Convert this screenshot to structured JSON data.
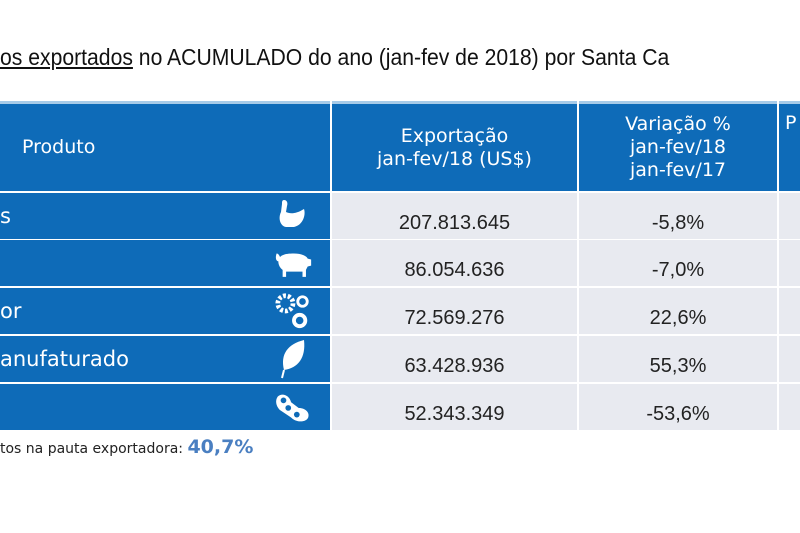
{
  "title": {
    "underlined": "os exportados",
    "rest": " no ACUMULADO do ano (jan-fev de 2018) por Santa Ca"
  },
  "table": {
    "headers": [
      "Produto",
      "Exportação\njan-fev/18 (US$)",
      "Variação %\njan-fev/18\njan-fev/17",
      "P"
    ],
    "rows": [
      {
        "product": "s",
        "icon": "chicken-icon",
        "export": "207.813.645",
        "variation": "-5,8%"
      },
      {
        "product": "",
        "icon": "pig-icon",
        "export": "86.054.636",
        "variation": "-7,0%"
      },
      {
        "product": "or",
        "icon": "gears-icon",
        "export": "72.569.276",
        "variation": "22,6%"
      },
      {
        "product": "anufaturado",
        "icon": "leaf-icon",
        "export": "63.428.936",
        "variation": "55,3%"
      },
      {
        "product": "",
        "icon": "soybean-icon",
        "export": "52.343.349",
        "variation": "-53,6%"
      }
    ]
  },
  "footer": {
    "label": "tos na pauta exportadora: ",
    "value": "40,7%"
  }
}
